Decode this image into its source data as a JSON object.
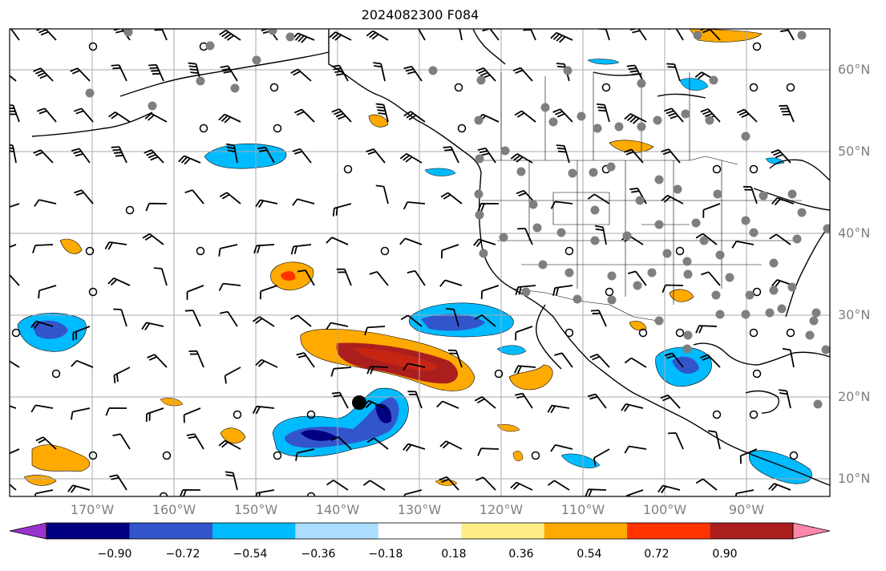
{
  "title": "2024082300 F084",
  "lat_labels": [
    "60°N",
    "50°N",
    "40°N",
    "30°N",
    "20°N",
    "10°N"
  ],
  "lon_labels": [
    "170°W",
    "160°W",
    "150°W",
    "140°W",
    "130°W",
    "120°W",
    "110°W",
    "100°W",
    "90°W"
  ],
  "colorbar": {
    "ticks": [
      "−0.90",
      "−0.72",
      "−0.54",
      "−0.36",
      "−0.18",
      "0.18",
      "0.36",
      "0.54",
      "0.72",
      "0.90"
    ],
    "colors": [
      "#9933cc",
      "#000080",
      "#3355cc",
      "#00bbff",
      "#aaddff",
      "#ffffff",
      "#ffee88",
      "#ffaa00",
      "#ff3300",
      "#aa1e1e",
      "#ff88aa"
    ]
  },
  "map_extent": {
    "lon": [
      -180,
      -80
    ],
    "lat": [
      8,
      65
    ]
  },
  "layers": [
    "coastlines",
    "country borders",
    "state/province borders",
    "wind barbs",
    "station markers",
    "filled contour field"
  ]
}
